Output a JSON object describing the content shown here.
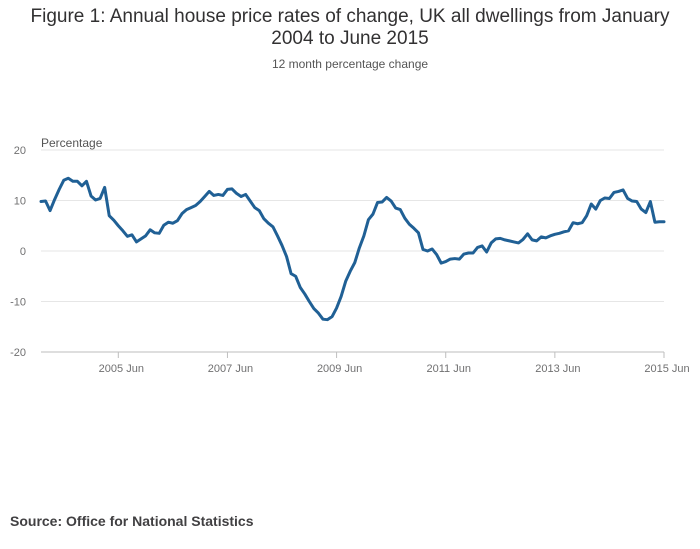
{
  "header": {
    "title": "Figure 1: Annual house price rates of change, UK all dwellings from January 2004 to June 2015",
    "subtitle": "12 month percentage change"
  },
  "footer": {
    "source": "Source: Office for National Statistics"
  },
  "colors": {
    "line": "#206095",
    "grid": "#e6e6e6",
    "axis": "#bebebe"
  },
  "chart_data": {
    "type": "line",
    "title": "Figure 1: Annual house price rates of change, UK all dwellings from January 2004 to June 2015",
    "subtitle": "12 month percentage change",
    "xlabel": "",
    "ylabel": "Percentage",
    "ylim": [
      -20,
      20
    ],
    "yticks": [
      -20,
      -10,
      0,
      10,
      20
    ],
    "ytick_labels": [
      "-20",
      "-10",
      "0",
      "10",
      "20"
    ],
    "xlim_month_index": [
      0,
      137
    ],
    "xtick_month_index": [
      17,
      41,
      65,
      89,
      113,
      137
    ],
    "xtick_labels": [
      "2005 Jun",
      "2007 Jun",
      "2009 Jun",
      "2011 Jun",
      "2013 Jun",
      "2015 Jun"
    ],
    "grid": true,
    "legend": "none",
    "x_start": "2004 Jan",
    "x_end": "2015 Jun",
    "series": [
      {
        "name": "UK all dwellings",
        "values": [
          9.8,
          9.9,
          8.0,
          10.2,
          12.2,
          14.0,
          14.4,
          13.8,
          13.8,
          12.9,
          13.8,
          10.9,
          10.1,
          10.4,
          12.6,
          7.0,
          6.1,
          5.0,
          4.0,
          2.9,
          3.2,
          1.8,
          2.4,
          3.0,
          4.2,
          3.6,
          3.5,
          5.1,
          5.7,
          5.5,
          6.0,
          7.4,
          8.2,
          8.6,
          9.0,
          9.8,
          10.8,
          11.8,
          11.0,
          11.2,
          11.0,
          12.2,
          12.3,
          11.4,
          10.8,
          11.2,
          9.9,
          8.6,
          8.0,
          6.4,
          5.5,
          4.8,
          3.0,
          1.1,
          -1.1,
          -4.5,
          -5.0,
          -7.2,
          -8.5,
          -10.0,
          -11.4,
          -12.3,
          -13.5,
          -13.6,
          -13.0,
          -11.3,
          -9.0,
          -6.0,
          -4.0,
          -2.3,
          0.6,
          3.0,
          6.2,
          7.3,
          9.6,
          9.7,
          10.6,
          9.9,
          8.5,
          8.2,
          6.5,
          5.3,
          4.5,
          3.6,
          0.3,
          0.0,
          0.4,
          -0.7,
          -2.4,
          -2.1,
          -1.6,
          -1.5,
          -1.6,
          -0.6,
          -0.4,
          -0.4,
          0.7,
          1.0,
          -0.2,
          1.6,
          2.4,
          2.5,
          2.2,
          2.0,
          1.8,
          1.6,
          2.3,
          3.4,
          2.2,
          2.0,
          2.8,
          2.6,
          3.0,
          3.3,
          3.5,
          3.8,
          4.0,
          5.6,
          5.4,
          5.6,
          7.0,
          9.3,
          8.3,
          10.0,
          10.5,
          10.4,
          11.6,
          11.8,
          12.1,
          10.4,
          9.9,
          9.8,
          8.3,
          7.6,
          9.8,
          5.7,
          5.8,
          5.8
        ]
      }
    ]
  }
}
